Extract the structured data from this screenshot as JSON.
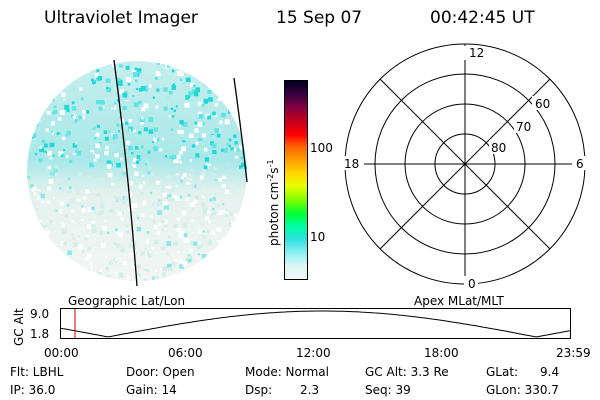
{
  "header": {
    "instrument": "Ultraviolet Imager",
    "date": "15 Sep 07",
    "time": "00:42:45 UT"
  },
  "imager": {
    "caption": "Geographic Lat/Lon"
  },
  "colorbar": {
    "unit_label": "photon cm",
    "unit_exp1": "-2",
    "unit_mid": "s",
    "unit_exp2": "-1",
    "ticks": [
      "100",
      "10"
    ],
    "colors": [
      "#000020",
      "#3a0040",
      "#800040",
      "#c00020",
      "#ff0000",
      "#ff6000",
      "#ffa000",
      "#ffd800",
      "#e8ff00",
      "#80ff00",
      "#00ff30",
      "#00ffa0",
      "#30e0e0",
      "#90f0f0",
      "#d8f4f4",
      "#f4f8f8"
    ]
  },
  "polar": {
    "caption": "Apex MLat/MLT",
    "mlt_labels": {
      "top": "12",
      "left": "18",
      "right": "6",
      "bottom": "0"
    },
    "lat_labels": [
      "60",
      "70",
      "80"
    ]
  },
  "altitude": {
    "ylabel": "GC Alt",
    "yticks": [
      "9.0",
      "1.8"
    ],
    "xticks": [
      "00:00",
      "06:00",
      "12:00",
      "18:00",
      "23:59"
    ],
    "marker_color": "#c00000"
  },
  "info": {
    "row1": [
      "Flt: LBHL",
      "Door: Open",
      "Mode: Normal",
      "GC Alt: 3.3 Re",
      "GLat:",
      "9.4"
    ],
    "row2": [
      "IP: 36.0",
      "Gain: 14",
      "Dsp:",
      "2.3",
      "Seq: 39",
      "GLon: 330.7"
    ]
  }
}
